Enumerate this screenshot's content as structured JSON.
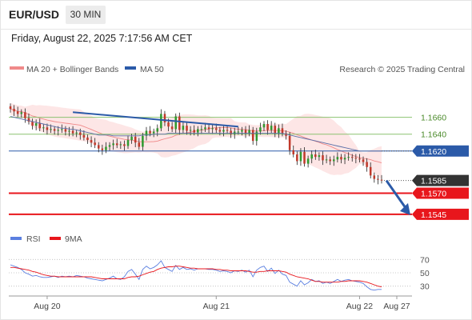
{
  "header": {
    "symbol": "EUR/USD",
    "timeframe": "30 MIN",
    "datetime": "Friday, August 22, 2025 7:17:56 AM CET"
  },
  "legend": {
    "bollinger_label": "MA 20 + Bollinger Bands",
    "ma50_label": "MA 50",
    "credit": "Research © 2025 Trading Central",
    "rsi_label": "RSI",
    "rsi_ma_label": "9MA"
  },
  "colors": {
    "bollinger": "#f08a8a",
    "band_fill": "#fde3e3",
    "ma50": "#5b6fa8",
    "candle_up": "#2f9a2f",
    "candle_down": "#c0392b",
    "support_red": "#e8161c",
    "pivot_blue": "#2b5aa8",
    "target_green": "#8cc270",
    "rsi": "#5b7fe0",
    "rsi_ma": "#e8161c",
    "last_price_tag": "#333333"
  },
  "chart_data": [
    {
      "type": "candlestick",
      "title": "EUR/USD",
      "timeframe": "30 MIN",
      "x_ticks": [
        "Aug 20",
        "Aug 21",
        "Aug 22",
        "Aug 27"
      ],
      "levels": [
        {
          "value": 1.166,
          "label": "1.1660",
          "style": "target",
          "tag": false
        },
        {
          "value": 1.164,
          "label": "1.1640",
          "style": "target",
          "tag": false
        },
        {
          "value": 1.162,
          "label": "1.1620",
          "style": "pivot",
          "tag": true
        },
        {
          "value": 1.157,
          "label": "1.1570",
          "style": "support",
          "tag": true
        },
        {
          "value": 1.1545,
          "label": "1.1545",
          "style": "support",
          "tag": true
        }
      ],
      "last_price": {
        "value": 1.1585,
        "label": "1.1585"
      },
      "y_range": [
        1.1524,
        1.1708
      ],
      "series_close": [
        1.167,
        1.1667,
        1.1664,
        1.1666,
        1.1659,
        1.1655,
        1.165,
        1.1653,
        1.1647,
        1.1648,
        1.1645,
        1.1646,
        1.1644,
        1.1645,
        1.1646,
        1.1643,
        1.1644,
        1.1641,
        1.1642,
        1.1639,
        1.1636,
        1.1633,
        1.163,
        1.1627,
        1.1623,
        1.1621,
        1.1625,
        1.1627,
        1.1629,
        1.1627,
        1.1628,
        1.1626,
        1.1633,
        1.1637,
        1.163,
        1.1625,
        1.1638,
        1.1644,
        1.1641,
        1.1643,
        1.1647,
        1.1664,
        1.1654,
        1.1649,
        1.1646,
        1.1661,
        1.1645,
        1.165,
        1.1644,
        1.1645,
        1.1642,
        1.1646,
        1.1646,
        1.1648,
        1.1646,
        1.1647,
        1.1645,
        1.1643,
        1.1645,
        1.1644,
        1.164,
        1.1643,
        1.1643,
        1.1645,
        1.1641,
        1.1645,
        1.1632,
        1.1643,
        1.1648,
        1.1652,
        1.1645,
        1.165,
        1.1641,
        1.1647,
        1.1641,
        1.1638,
        1.1621,
        1.1616,
        1.1608,
        1.1619,
        1.1605,
        1.1611,
        1.1616,
        1.1613,
        1.1615,
        1.1609,
        1.161,
        1.1608,
        1.161,
        1.1613,
        1.161,
        1.1612,
        1.1613,
        1.1612,
        1.1611,
        1.161,
        1.1607,
        1.1601,
        1.1591,
        1.1587,
        1.1586,
        1.1585
      ],
      "ma50": [
        1.1661,
        1.166,
        1.1659,
        1.1658,
        1.1657,
        1.1656,
        1.1655,
        1.1654,
        1.1653,
        1.1652,
        1.1651,
        1.165,
        1.1649,
        1.1648,
        1.1647,
        1.1647,
        1.1646,
        1.1646,
        1.1645,
        1.1644,
        1.1643,
        1.1642,
        1.1641,
        1.164,
        1.1639,
        1.1639,
        1.1639,
        1.1639,
        1.1638,
        1.1638,
        1.1638,
        1.1638,
        1.1638,
        1.1638,
        1.1638,
        1.1638,
        1.1639,
        1.1639,
        1.1639,
        1.164,
        1.164,
        1.164,
        1.164,
        1.1641,
        1.1641,
        1.1641,
        1.1641,
        1.1641,
        1.1641,
        1.1641,
        1.1641,
        1.1641,
        1.1641,
        1.1641,
        1.1641,
        1.1641,
        1.1641,
        1.1641,
        1.1641,
        1.1641,
        1.1641,
        1.1641,
        1.1641,
        1.1641,
        1.1641,
        1.1641,
        1.1641,
        1.1641,
        1.1641,
        1.1641,
        1.1641,
        1.1641,
        1.1641,
        1.1641,
        1.1641,
        1.164,
        1.1639,
        1.1638,
        1.1637,
        1.1636,
        1.1635,
        1.1634,
        1.1633,
        1.1632,
        1.1631,
        1.163,
        1.1629,
        1.1628,
        1.1627,
        1.1626,
        1.1625,
        1.1624,
        1.1623,
        1.1622,
        1.1621,
        1.162,
        1.162,
        1.162,
        1.162,
        1.162,
        1.162,
        1.162
      ],
      "rsi": {
        "ticks": [
          70,
          50,
          30
        ],
        "y_range": [
          20,
          80
        ],
        "rsi": [
          62,
          60,
          58,
          55,
          50,
          48,
          45,
          46,
          44,
          43,
          43,
          44,
          45,
          43,
          45,
          44,
          45,
          44,
          46,
          45,
          44,
          42,
          41,
          40,
          39,
          38,
          40,
          42,
          45,
          41,
          40,
          44,
          52,
          55,
          48,
          40,
          55,
          60,
          56,
          58,
          62,
          68,
          58,
          55,
          52,
          61,
          55,
          58,
          55,
          56,
          54,
          56,
          56,
          56,
          55,
          55,
          54,
          52,
          53,
          52,
          50,
          53,
          52,
          54,
          51,
          54,
          44,
          54,
          58,
          60,
          52,
          57,
          49,
          54,
          48,
          46,
          36,
          33,
          30,
          38,
          32,
          35,
          40,
          37,
          38,
          34,
          36,
          34,
          37,
          40,
          37,
          39,
          40,
          38,
          37,
          36,
          34,
          29,
          25,
          24,
          25,
          25
        ],
        "ma9": [
          58,
          58,
          57,
          56,
          55,
          54,
          52,
          51,
          49,
          47,
          46,
          45,
          45,
          44,
          44,
          44,
          44,
          44,
          44,
          44,
          44,
          44,
          44,
          43,
          42,
          41,
          41,
          41,
          41,
          41,
          41,
          41,
          43,
          44,
          44,
          45,
          47,
          49,
          51,
          52,
          55,
          57,
          58,
          59,
          59,
          60,
          60,
          59,
          58,
          57,
          57,
          56,
          56,
          56,
          56,
          56,
          55,
          55,
          54,
          54,
          53,
          53,
          53,
          53,
          53,
          52,
          51,
          51,
          52,
          52,
          53,
          53,
          53,
          53,
          52,
          51,
          48,
          46,
          44,
          43,
          42,
          41,
          39,
          37,
          37,
          36,
          36,
          36,
          36,
          36,
          37,
          37,
          38,
          38,
          38,
          38,
          37,
          36,
          34,
          32,
          30,
          29
        ]
      }
    }
  ]
}
